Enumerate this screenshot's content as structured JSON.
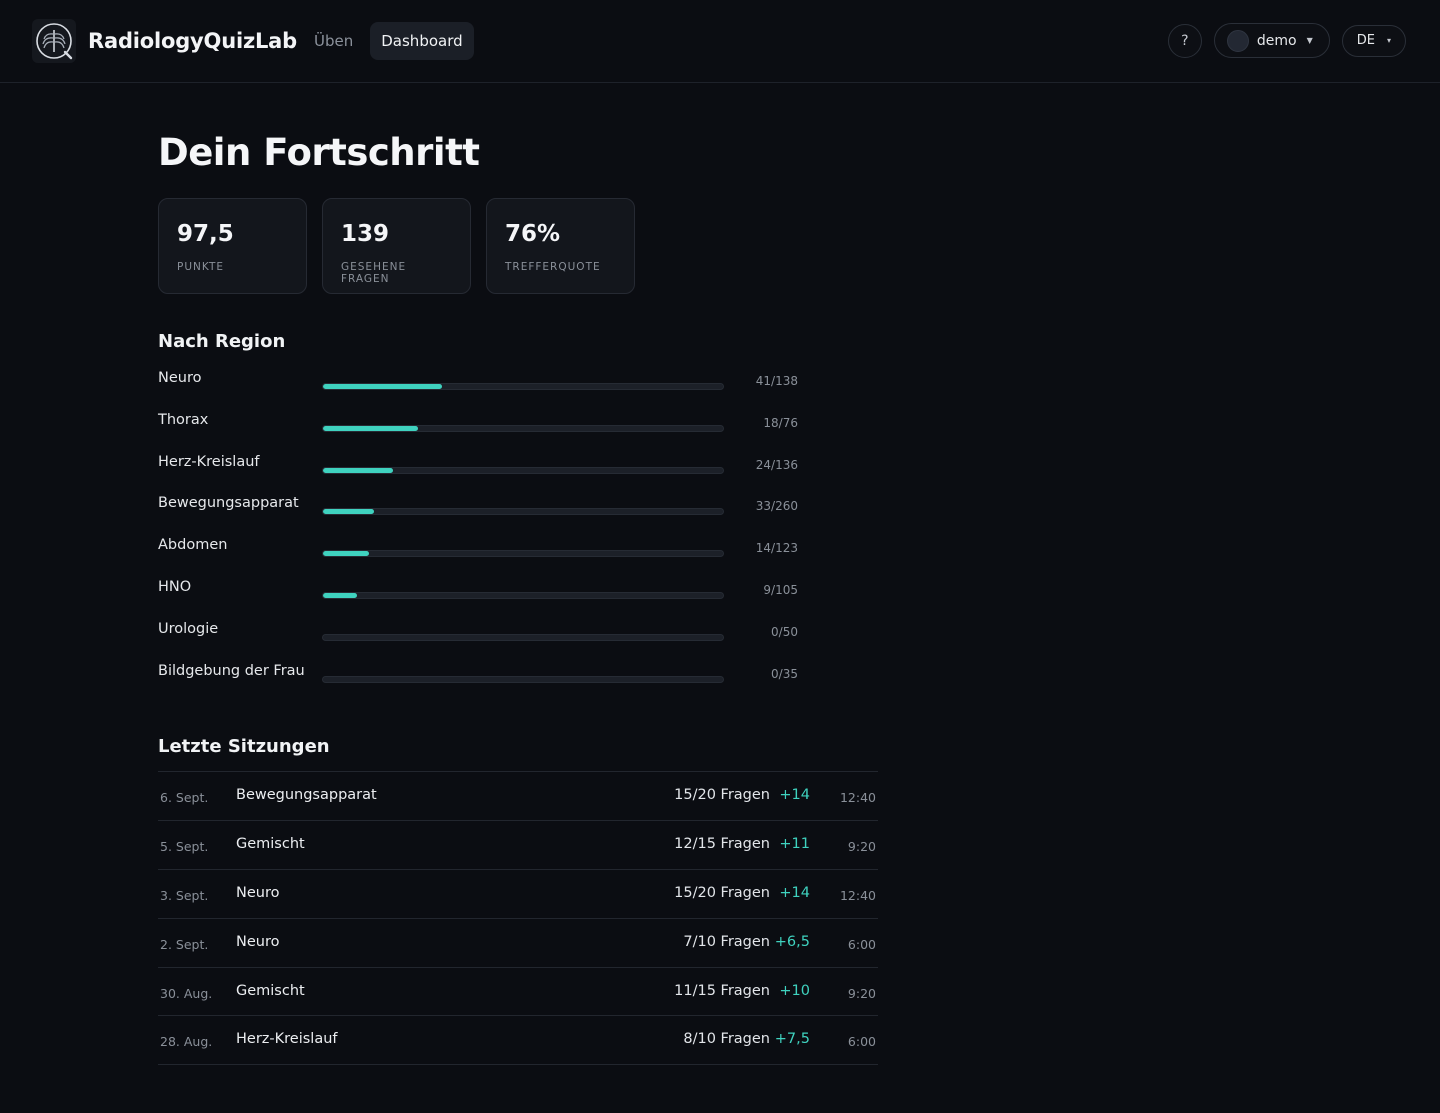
{
  "app": {
    "brand_name": "RadiologyQuizLab",
    "logo_icon": "ribcage-logo-icon"
  },
  "nav": {
    "items": [
      {
        "label": "Üben",
        "active": false
      },
      {
        "label": "Dashboard",
        "active": true
      }
    ]
  },
  "header": {
    "help_label": "?",
    "user_name": "demo",
    "language": "DE"
  },
  "page": {
    "title": "Dein Fortschritt"
  },
  "stats": [
    {
      "value": "97,5",
      "label": "PUNKTE"
    },
    {
      "value": "139",
      "label": "GESEHENE FRAGEN"
    },
    {
      "value": "76%",
      "label": "TREFFERQUOTE"
    }
  ],
  "regions": {
    "title": "Nach Region",
    "items": [
      {
        "name": "Neuro",
        "count": "41/138",
        "progress": 0.297
      },
      {
        "name": "Thorax",
        "count": "18/76",
        "progress": 0.237
      },
      {
        "name": "Herz-Kreislauf",
        "count": "24/136",
        "progress": 0.176
      },
      {
        "name": "Bewegungsapparat",
        "count": "33/260",
        "progress": 0.127
      },
      {
        "name": "Abdomen",
        "count": "14/123",
        "progress": 0.114
      },
      {
        "name": "HNO",
        "count": "9/105",
        "progress": 0.086
      },
      {
        "name": "Urologie",
        "count": "0/50",
        "progress": 0
      },
      {
        "name": "Bildgebung der Frau",
        "count": "0/35",
        "progress": 0
      }
    ]
  },
  "sessions": {
    "title": "Letzte Sitzungen",
    "items": [
      {
        "date": "6. Sept.",
        "region": "Bewegungsapparat",
        "questions": "15/20 Fragen",
        "score": "+14",
        "time": "12:40"
      },
      {
        "date": "5. Sept.",
        "region": "Gemischt",
        "questions": "12/15 Fragen",
        "score": "+11",
        "time": "9:20"
      },
      {
        "date": "3. Sept.",
        "region": "Neuro",
        "questions": "15/20 Fragen",
        "score": "+14",
        "time": "12:40"
      },
      {
        "date": "2. Sept.",
        "region": "Neuro",
        "questions": "7/10 Fragen",
        "score": "+6,5",
        "time": "6:00"
      },
      {
        "date": "30. Aug.",
        "region": "Gemischt",
        "questions": "11/15 Fragen",
        "score": "+10",
        "time": "9:20"
      },
      {
        "date": "28. Aug.",
        "region": "Herz-Kreislauf",
        "questions": "8/10 Fragen",
        "score": "+7,5",
        "time": "6:00"
      }
    ]
  },
  "colors": {
    "accent": "#3fd2bf",
    "background": "#0b0d12"
  }
}
